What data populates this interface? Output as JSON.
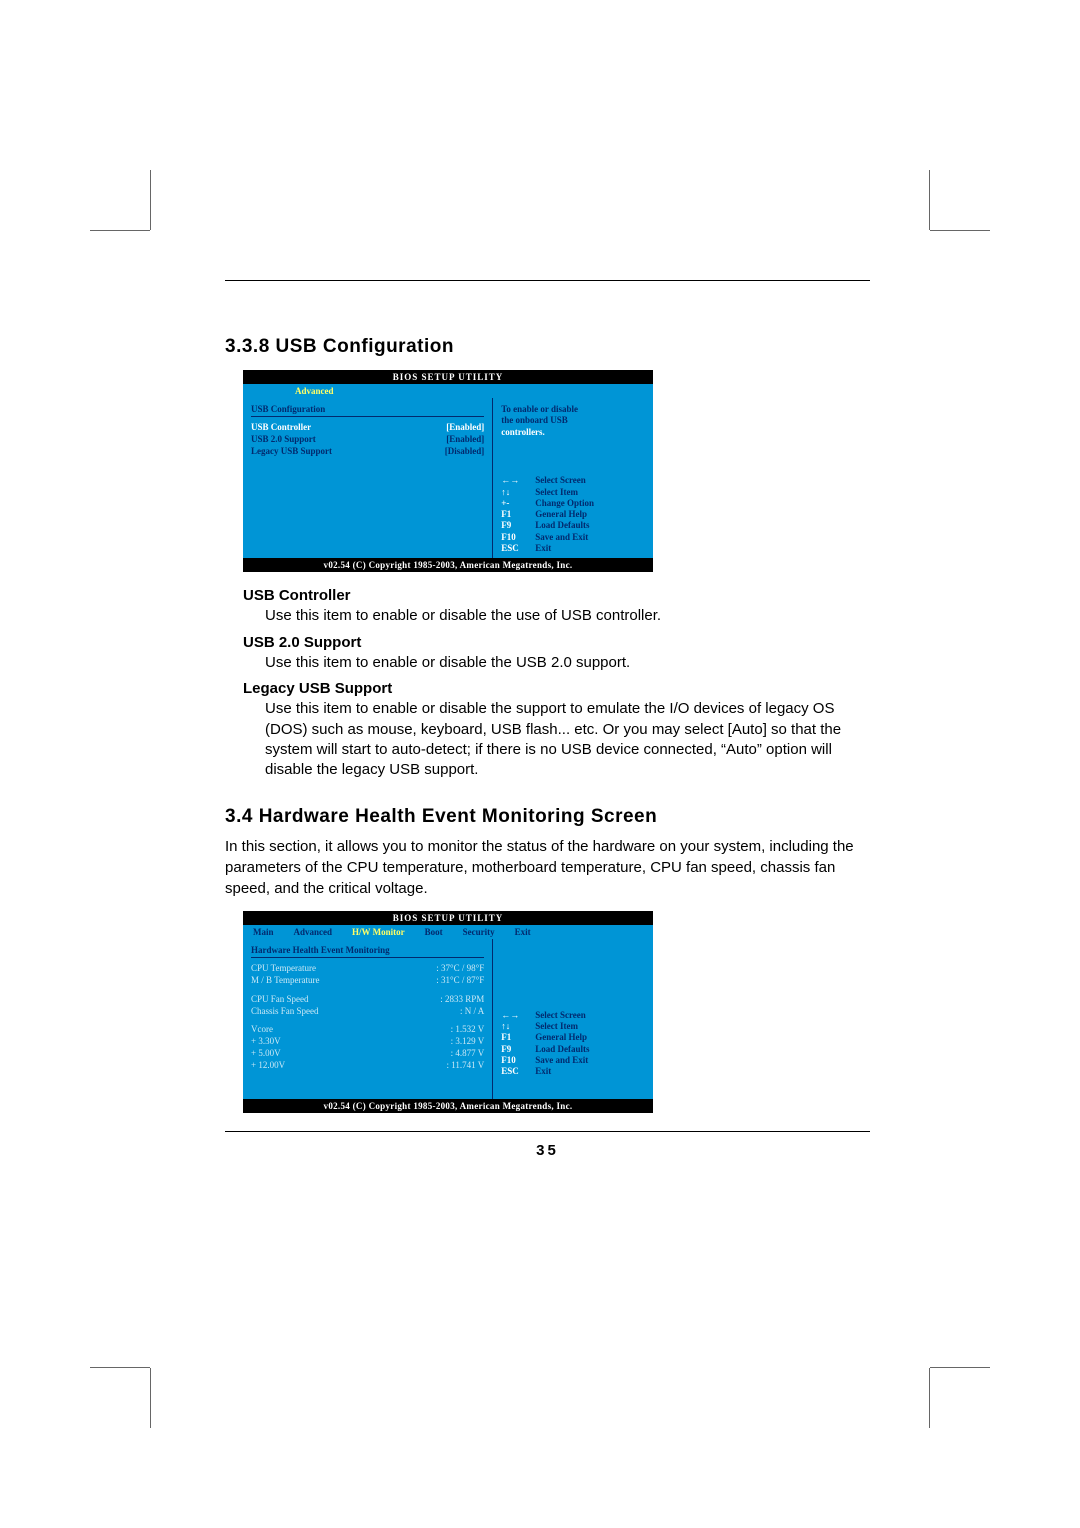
{
  "section1": {
    "number_title": "3.3.8 USB Configuration"
  },
  "bios1": {
    "title": "BIOS SETUP UTILITY",
    "tab": "Advanced",
    "heading": "USB Configuration",
    "rows": [
      {
        "k": "USB Controller",
        "v": "[Enabled]",
        "selected": true
      },
      {
        "k": "USB 2.0 Support",
        "v": "[Enabled]",
        "selected": false
      },
      {
        "k": "Legacy USB Support",
        "v": "[Disabled]",
        "selected": false
      }
    ],
    "hint_lines": [
      "To enable or disable",
      "the onboard USB"
    ],
    "hint_cur": "controllers.",
    "keys": [
      {
        "k": "←→",
        "d": "Select Screen"
      },
      {
        "k": "↑↓",
        "d": "Select Item"
      },
      {
        "k": "+-",
        "d": "Change Option"
      },
      {
        "k": "F1",
        "d": "General Help"
      },
      {
        "k": "F9",
        "d": "Load Defaults"
      },
      {
        "k": "F10",
        "d": "Save and Exit"
      },
      {
        "k": "ESC",
        "d": "Exit"
      }
    ],
    "footer": "v02.54 (C) Copyright 1985-2003, American Megatrends, Inc."
  },
  "desc1": {
    "items": [
      {
        "term": "USB Controller",
        "body": "Use this item to enable or disable the use of USB controller."
      },
      {
        "term": "USB 2.0 Support",
        "body": "Use this item to enable or disable the USB 2.0 support."
      },
      {
        "term": "Legacy USB Support",
        "body": "Use this item to enable or disable the support to emulate the I/O devices of legacy OS (DOS) such as mouse, keyboard, USB flash... etc. Or you may select [Auto] so that the system will start to auto-detect; if there is no USB  device connected,  “Auto” option will disable the legacy USB support."
      }
    ]
  },
  "section2": {
    "number_title": "3.4   Hardware Health Event Monitoring Screen",
    "intro": "In this section, it allows you to monitor the status of the hardware on your system, including the parameters of the CPU temperature, motherboard temperature, CPU fan speed, chassis fan speed, and the critical voltage."
  },
  "bios2": {
    "title": "BIOS SETUP UTILITY",
    "tabs": [
      "Main",
      "Advanced",
      "H/W Monitor",
      "Boot",
      "Security",
      "Exit"
    ],
    "active_tab": "H/W Monitor",
    "heading": "Hardware Health Event Monitoring",
    "rows": [
      {
        "k": "CPU Temperature",
        "v": ": 37°C / 98°F"
      },
      {
        "k": "M / B Temperature",
        "v": ": 31°C / 87°F"
      },
      {
        "k": "",
        "v": ""
      },
      {
        "k": "CPU Fan Speed",
        "v": ": 2833 RPM"
      },
      {
        "k": "Chassis Fan Speed",
        "v": ": N / A"
      },
      {
        "k": "",
        "v": ""
      },
      {
        "k": "Vcore",
        "v": ": 1.532 V"
      },
      {
        "k": "+ 3.30V",
        "v": ": 3.129 V"
      },
      {
        "k": "+ 5.00V",
        "v": ": 4.877 V"
      },
      {
        "k": "+ 12.00V",
        "v": ": 11.741 V"
      }
    ],
    "keys": [
      {
        "k": "←→",
        "d": "Select Screen"
      },
      {
        "k": "↑↓",
        "d": "Select Item"
      },
      {
        "k": "F1",
        "d": "General Help"
      },
      {
        "k": "F9",
        "d": "Load Defaults"
      },
      {
        "k": "F10",
        "d": "Save and Exit"
      },
      {
        "k": "ESC",
        "d": "Exit"
      }
    ],
    "footer": "v02.54 (C) Copyright 1985-2003, American Megatrends, Inc."
  },
  "page_number": "35",
  "colors": {
    "bios_bg": "#0095d6",
    "bios_text": "#022a6e",
    "bios_highlight": "#ffffff",
    "tab_active": "#ffff66"
  }
}
